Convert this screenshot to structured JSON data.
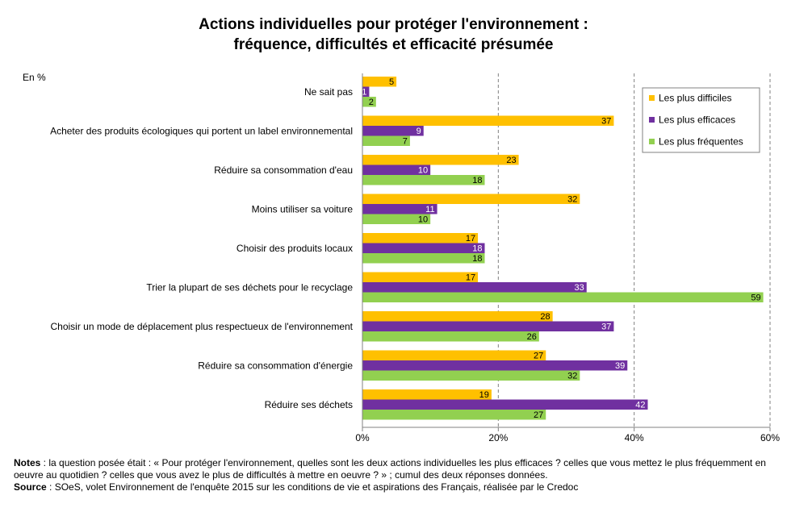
{
  "title_lines": [
    "Actions individuelles pour protéger l'environnement :",
    "fréquence, difficultés et efficacité présumée"
  ],
  "chart_data": {
    "type": "bar",
    "orientation": "horizontal",
    "unit_label": "En %",
    "categories": [
      "Ne sait pas",
      "Acheter des produits écologiques qui portent un label environnemental",
      "Réduire sa consommation d'eau",
      "Moins utiliser sa voiture",
      "Choisir des produits locaux",
      "Trier la plupart de ses déchets pour le recyclage",
      "Choisir un mode de déplacement plus respectueux de l'environnement",
      "Réduire sa consommation d'énergie",
      "Réduire ses déchets"
    ],
    "series": [
      {
        "name": "Les plus difficiles",
        "color": "#FFC000",
        "label_color": "#000000",
        "values": [
          5,
          37,
          23,
          32,
          17,
          17,
          28,
          27,
          19
        ]
      },
      {
        "name": "Les plus efficaces",
        "color": "#7030A0",
        "label_color": "#FFFFFF",
        "values": [
          1,
          9,
          10,
          11,
          18,
          33,
          37,
          39,
          42
        ]
      },
      {
        "name": "Les plus fréquentes",
        "color": "#92D050",
        "label_color": "#000000",
        "values": [
          2,
          7,
          18,
          10,
          18,
          59,
          26,
          32,
          27
        ]
      }
    ],
    "xlim": [
      0,
      60
    ],
    "x_ticks": [
      0,
      20,
      40,
      60
    ],
    "x_tick_labels": [
      "0%",
      "20%",
      "40%",
      "60%"
    ],
    "grid": "vertical dashed",
    "legend_position": "top-right"
  },
  "notes": {
    "notes_label": "Notes",
    "notes_text": " : la question posée était : « Pour protéger l'environnement, quelles sont les deux actions individuelles les plus efficaces ? celles que vous mettez le plus fréquemment en oeuvre au quotidien ? celles que vous avez le plus de difficultés à mettre en oeuvre ? » ; cumul des deux réponses données.",
    "source_label": "Source",
    "source_text": " : SOeS, volet Environnement de l'enquête 2015 sur les conditions de vie et aspirations des Français, réalisée par le Credoc"
  }
}
